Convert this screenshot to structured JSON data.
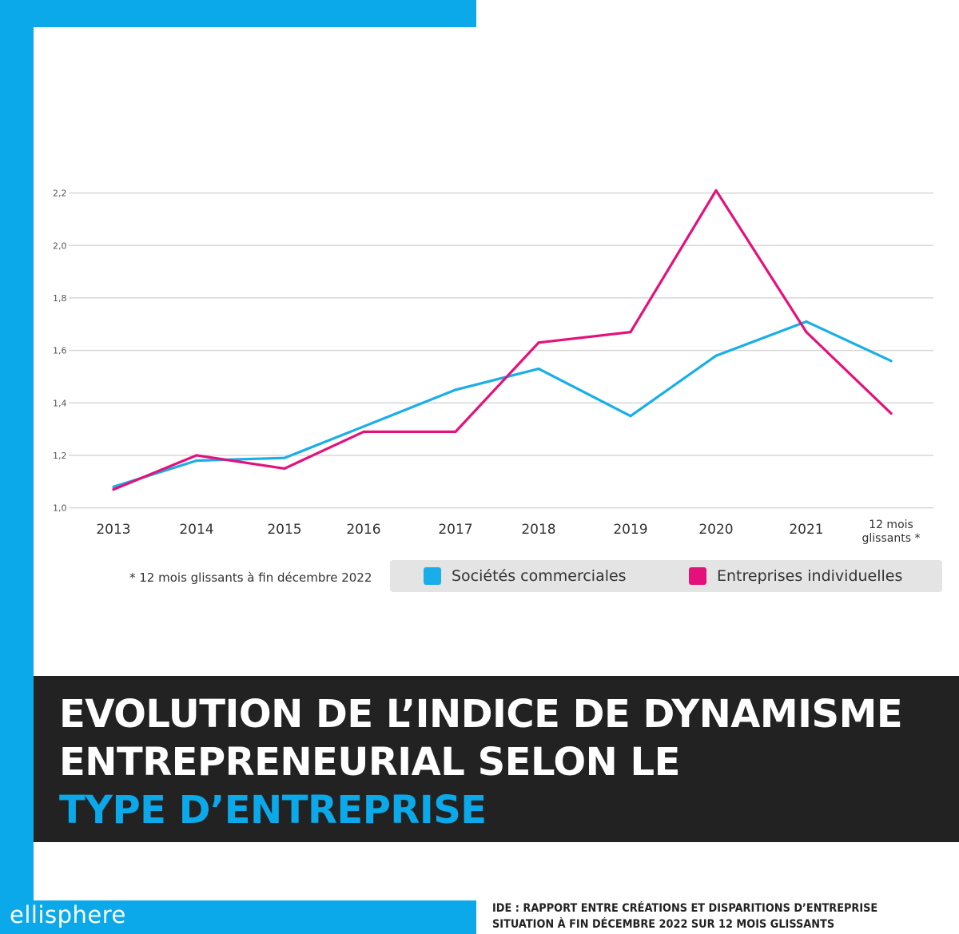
{
  "brand": {
    "name": "ellisphere"
  },
  "colors": {
    "accent": "#0ba9ea",
    "series_a": "#1aaee8",
    "series_b": "#e5117b",
    "title_box": "#222222"
  },
  "title": {
    "line1": "EVOLUTION DE L’INDICE DE DYNAMISME",
    "line2": "ENTREPRENEURIAL SELON LE",
    "line3": "TYPE D’ENTREPRISE"
  },
  "caption": {
    "line1": "IDE : RAPPORT ENTRE CRÉATIONS ET DISPARITIONS D’ENTREPRISE",
    "line2": "SITUATION À FIN DÉCEMBRE 2022 SUR 12 MOIS GLISSANTS"
  },
  "footnote": "* 12 mois glissants à fin décembre 2022",
  "legend": {
    "items": [
      {
        "label": "Sociétés commerciales",
        "color": "#1aaee8"
      },
      {
        "label": "Entreprises individuelles",
        "color": "#e5117b"
      }
    ]
  },
  "chart_data": {
    "type": "line",
    "categories": [
      "2013",
      "2014",
      "2015",
      "2016",
      "2017",
      "2018",
      "2019",
      "2020",
      "2021",
      "12 mois glissants *"
    ],
    "category_lines": [
      [
        "2013"
      ],
      [
        "2014"
      ],
      [
        "2015"
      ],
      [
        "2016"
      ],
      [
        "2017"
      ],
      [
        "2018"
      ],
      [
        "2019"
      ],
      [
        "2020"
      ],
      [
        "2021"
      ],
      [
        "12 mois",
        "glissants *"
      ]
    ],
    "yticks": [
      "1,0",
      "1,2",
      "1,4",
      "1,6",
      "1,8",
      "2,0",
      "2,2"
    ],
    "ylim": [
      1.0,
      2.2
    ],
    "grid": true,
    "legend_position": "bottom-right",
    "series": [
      {
        "name": "Sociétés commerciales",
        "color": "#1aaee8",
        "values": [
          1.08,
          1.18,
          1.19,
          1.31,
          1.45,
          1.53,
          1.35,
          1.58,
          1.71,
          1.56
        ]
      },
      {
        "name": "Entreprises individuelles",
        "color": "#e5117b",
        "values": [
          1.07,
          1.2,
          1.15,
          1.29,
          1.29,
          1.63,
          1.67,
          2.21,
          1.67,
          1.36
        ]
      }
    ]
  }
}
